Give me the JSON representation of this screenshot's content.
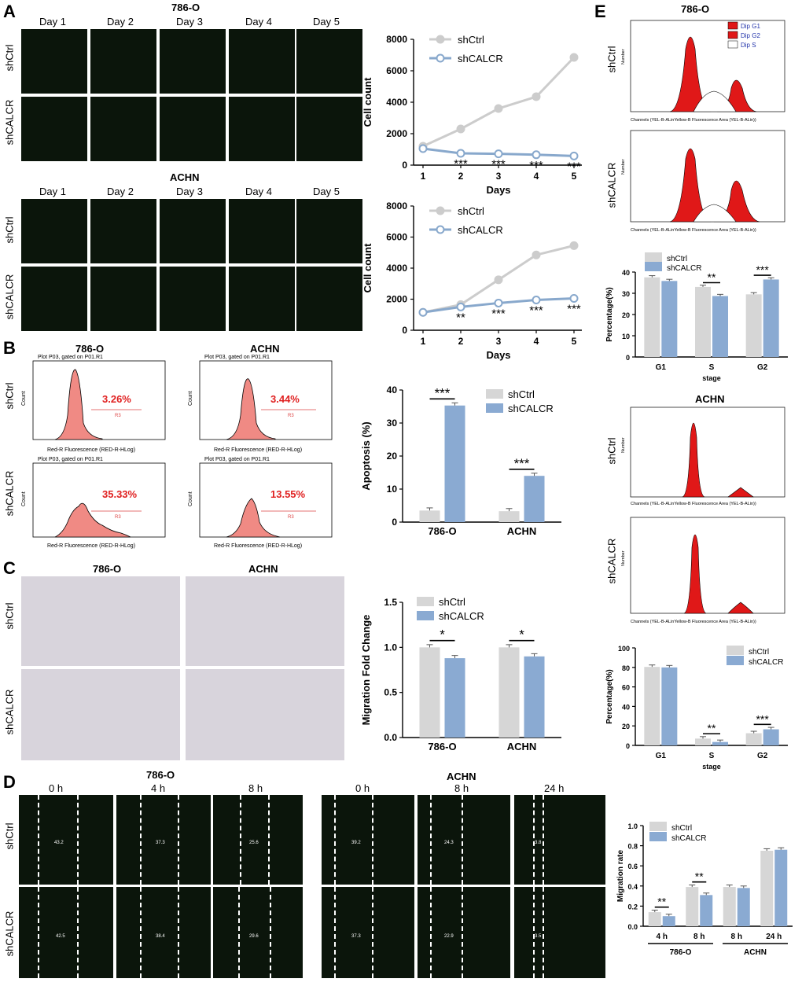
{
  "panel_letters": {
    "a": "A",
    "b": "B",
    "c": "C",
    "d": "D",
    "e": "E"
  },
  "groups": {
    "ctrl": "shCtrl",
    "kd": "shCALCR"
  },
  "cells": {
    "c1": "786-O",
    "c2": "ACHN"
  },
  "days": [
    "Day 1",
    "Day 2",
    "Day 3",
    "Day 4",
    "Day 5"
  ],
  "wound_times_786": [
    "0 h",
    "4 h",
    "8 h"
  ],
  "wound_times_achn": [
    "0 h",
    "8 h",
    "24 h"
  ],
  "wound_nums": {
    "ctrl": [
      "43.2",
      "37.3",
      "25.6",
      "39.2",
      "24.3",
      "3.8"
    ],
    "kd": [
      "42.5",
      "38.4",
      "29.6",
      "37.3",
      "22.9",
      "3.5"
    ]
  },
  "flow": {
    "plot_title": "Plot P03, gated on P01.R1",
    "x_axis": "Red-R Fluorescence (RED-R-HLog)",
    "y_axis": "Count",
    "gate": "R3",
    "pct": {
      "ctrl_786": "3.26%",
      "ctrl_achn": "3.44%",
      "kd_786": "35.33%",
      "kd_achn": "13.55%"
    }
  },
  "cycle": {
    "legend": [
      "Dip G1",
      "Dip G2",
      "Dip S"
    ],
    "x_axis": "Channels (YEL-B-ALinYellow-B Fluorescence Area (YEL-B-ALin))",
    "y_axis": "Number"
  },
  "chart_data": [
    {
      "id": "A-786",
      "type": "line",
      "x": [
        1,
        2,
        3,
        4,
        5
      ],
      "xlabel": "Days",
      "ylabel": "Cell count",
      "ylim": [
        0,
        8000
      ],
      "yticks": [
        0,
        2000,
        4000,
        6000,
        8000
      ],
      "series": [
        {
          "name": "shCtrl",
          "values": [
            1200,
            2300,
            3600,
            4350,
            6850
          ],
          "color": "#cccccc"
        },
        {
          "name": "shCALCR",
          "values": [
            1050,
            750,
            720,
            660,
            580
          ],
          "color": "#88a8cc"
        }
      ],
      "annotations": [
        "",
        "***",
        "***",
        "***",
        "***"
      ]
    },
    {
      "id": "A-ACHN",
      "type": "line",
      "x": [
        1,
        2,
        3,
        4,
        5
      ],
      "xlabel": "Days",
      "ylabel": "Cell count",
      "ylim": [
        0,
        8000
      ],
      "yticks": [
        0,
        2000,
        4000,
        6000,
        8000
      ],
      "series": [
        {
          "name": "shCtrl",
          "values": [
            1150,
            1650,
            3250,
            4850,
            5450
          ],
          "color": "#cccccc"
        },
        {
          "name": "shCALCR",
          "values": [
            1150,
            1500,
            1750,
            1950,
            2050
          ],
          "color": "#88a8cc"
        }
      ],
      "annotations": [
        "",
        "**",
        "***",
        "***",
        "***"
      ]
    },
    {
      "id": "B",
      "type": "bar",
      "categories": [
        "786-O",
        "ACHN"
      ],
      "ylabel": "Apoptosis (%)",
      "ylim": [
        0,
        40
      ],
      "yticks": [
        0,
        10,
        20,
        30,
        40
      ],
      "series": [
        {
          "name": "shCtrl",
          "values": [
            3.5,
            3.3
          ],
          "color": "#d6d6d6"
        },
        {
          "name": "shCALCR",
          "values": [
            35.3,
            14.0
          ],
          "color": "#8aaad2"
        }
      ],
      "annotations": [
        "***",
        "***"
      ]
    },
    {
      "id": "C",
      "type": "bar",
      "categories": [
        "786-O",
        "ACHN"
      ],
      "ylabel": "Migration Fold Change",
      "ylim": [
        0,
        1.5
      ],
      "yticks": [
        "0.0",
        "0.5",
        "1.0",
        "1.5"
      ],
      "series": [
        {
          "name": "shCtrl",
          "values": [
            1.0,
            1.0
          ],
          "color": "#d6d6d6"
        },
        {
          "name": "shCALCR",
          "values": [
            0.88,
            0.9
          ],
          "color": "#8aaad2"
        }
      ],
      "annotations": [
        "*",
        "*"
      ]
    },
    {
      "id": "D",
      "type": "bar",
      "categories": [
        "4 h",
        "8 h",
        "8 h",
        "24 h"
      ],
      "group_labels": [
        "786-O",
        "ACHN"
      ],
      "ylabel": "Migration rate",
      "ylim": [
        0,
        1.0
      ],
      "yticks": [
        "0.0",
        "0.2",
        "0.4",
        "0.6",
        "0.8",
        "1.0"
      ],
      "series": [
        {
          "name": "shCtrl",
          "values": [
            0.14,
            0.39,
            0.39,
            0.75
          ],
          "color": "#d6d6d6"
        },
        {
          "name": "shCALCR",
          "values": [
            0.1,
            0.31,
            0.38,
            0.76
          ],
          "color": "#8aaad2"
        }
      ],
      "annotations": [
        "**",
        "**",
        "",
        ""
      ]
    },
    {
      "id": "E-786",
      "type": "bar",
      "categories": [
        "G1",
        "S",
        "G2"
      ],
      "xlabel": "stage",
      "ylabel": "Percentage(%)",
      "ylim": [
        0,
        40
      ],
      "yticks": [
        0,
        10,
        20,
        30,
        40
      ],
      "series": [
        {
          "name": "shCtrl",
          "values": [
            37.5,
            33.0,
            29.5
          ],
          "color": "#d6d6d6"
        },
        {
          "name": "shCALCR",
          "values": [
            35.8,
            28.7,
            36.5
          ],
          "color": "#8aaad2"
        }
      ],
      "annotations": [
        "",
        "**",
        "***"
      ]
    },
    {
      "id": "E-ACHN",
      "type": "bar",
      "categories": [
        "G1",
        "S",
        "G2"
      ],
      "xlabel": "stage",
      "ylabel": "Percentage(%)",
      "ylim": [
        0,
        100
      ],
      "yticks": [
        0,
        20,
        40,
        60,
        80,
        100
      ],
      "series": [
        {
          "name": "shCtrl",
          "values": [
            80.5,
            7.0,
            12.5
          ],
          "color": "#d6d6d6"
        },
        {
          "name": "shCALCR",
          "values": [
            80.0,
            3.5,
            16.5
          ],
          "color": "#8aaad2"
        }
      ],
      "annotations": [
        "",
        "**",
        "***"
      ]
    }
  ]
}
